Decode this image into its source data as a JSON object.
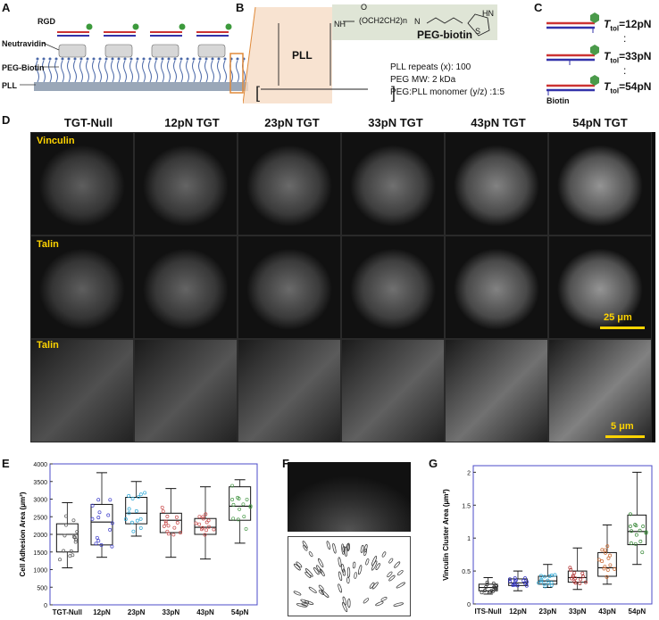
{
  "panels": {
    "a": {
      "letter": "A",
      "rgd": "RGD",
      "neutravidin": "Neutravidin",
      "peg_biotin": "PEG-Biotin",
      "pll": "PLL"
    },
    "b": {
      "letter": "B",
      "pll_label": "PLL",
      "peg_label": "PEG-biotin",
      "chem_top": "O",
      "chem_chain": "(OCH2CH2)n",
      "chem_nh": "NH",
      "chem_hn": "HN",
      "chem_s": "S",
      "chem_n": "N",
      "note1": "PLL repeats (x): 100",
      "note2": "PEG MW: 2 kDa",
      "note3": "PEG:PLL monomer (y/z) :1:5"
    },
    "c": {
      "letter": "C",
      "t1": "=12pN",
      "t2": "=33pN",
      "t3": "=54pN",
      "tsym": "T",
      "tsub": "tol",
      "biotin": "Biotin",
      "dots": ":"
    },
    "d": {
      "letter": "D",
      "columns": [
        "TGT-Null",
        "12pN TGT",
        "23pN TGT",
        "33pN TGT",
        "43pN TGT",
        "54pN TGT"
      ],
      "row_labels": [
        "Vinculin",
        "Talin",
        "Talin"
      ],
      "scale1": "25 μm",
      "scale2": "5 μm"
    },
    "e": {
      "letter": "E"
    },
    "f": {
      "letter": "F"
    },
    "g": {
      "letter": "G"
    }
  },
  "chart_data": [
    {
      "type": "box",
      "panel": "E",
      "ylabel": "Cell Adhesion Area (μm²)",
      "xlabel": "",
      "ylim": [
        0,
        4000
      ],
      "yticks": [
        0,
        500,
        1000,
        1500,
        2000,
        2500,
        3000,
        3500,
        4000
      ],
      "categories": [
        "TGT-Null",
        "12pN",
        "23pN",
        "33pN",
        "43pN",
        "54pN"
      ],
      "colors": [
        "#555555",
        "#3b3bc9",
        "#2aa7d6",
        "#c84a4a",
        "#c84a4a",
        "#4a9a4a"
      ],
      "series": [
        {
          "min": 1050,
          "q1": 1500,
          "median": 2000,
          "q3": 2300,
          "max": 2900
        },
        {
          "min": 1350,
          "q1": 1700,
          "median": 2350,
          "q3": 2850,
          "max": 3750
        },
        {
          "min": 1950,
          "q1": 2300,
          "median": 2600,
          "q3": 3050,
          "max": 3500
        },
        {
          "min": 1350,
          "q1": 2050,
          "median": 2400,
          "q3": 2600,
          "max": 3300
        },
        {
          "min": 1300,
          "q1": 2000,
          "median": 2200,
          "q3": 2450,
          "max": 3350
        },
        {
          "min": 1750,
          "q1": 2400,
          "median": 2800,
          "q3": 3350,
          "max": 3550
        }
      ]
    },
    {
      "type": "box",
      "panel": "G",
      "ylabel": "Vinculin Cluster Area (μm²)",
      "xlabel": "",
      "ylim": [
        0,
        2.1
      ],
      "yticks": [
        0,
        0.5,
        1,
        1.5,
        2
      ],
      "categories": [
        "ITS-Null",
        "12pN",
        "23pN",
        "33pN",
        "43pN",
        "54pN"
      ],
      "colors": [
        "#333333",
        "#2b2bc0",
        "#2aa7d6",
        "#b03030",
        "#c8642a",
        "#3a8a3a"
      ],
      "series": [
        {
          "min": 0.15,
          "q1": 0.2,
          "median": 0.25,
          "q3": 0.3,
          "max": 0.4
        },
        {
          "min": 0.2,
          "q1": 0.28,
          "median": 0.32,
          "q3": 0.38,
          "max": 0.5
        },
        {
          "min": 0.25,
          "q1": 0.3,
          "median": 0.35,
          "q3": 0.42,
          "max": 0.6
        },
        {
          "min": 0.22,
          "q1": 0.33,
          "median": 0.4,
          "q3": 0.5,
          "max": 0.85
        },
        {
          "min": 0.3,
          "q1": 0.42,
          "median": 0.55,
          "q3": 0.78,
          "max": 1.2
        },
        {
          "min": 0.6,
          "q1": 0.9,
          "median": 1.1,
          "q3": 1.35,
          "max": 2.0
        }
      ]
    }
  ]
}
